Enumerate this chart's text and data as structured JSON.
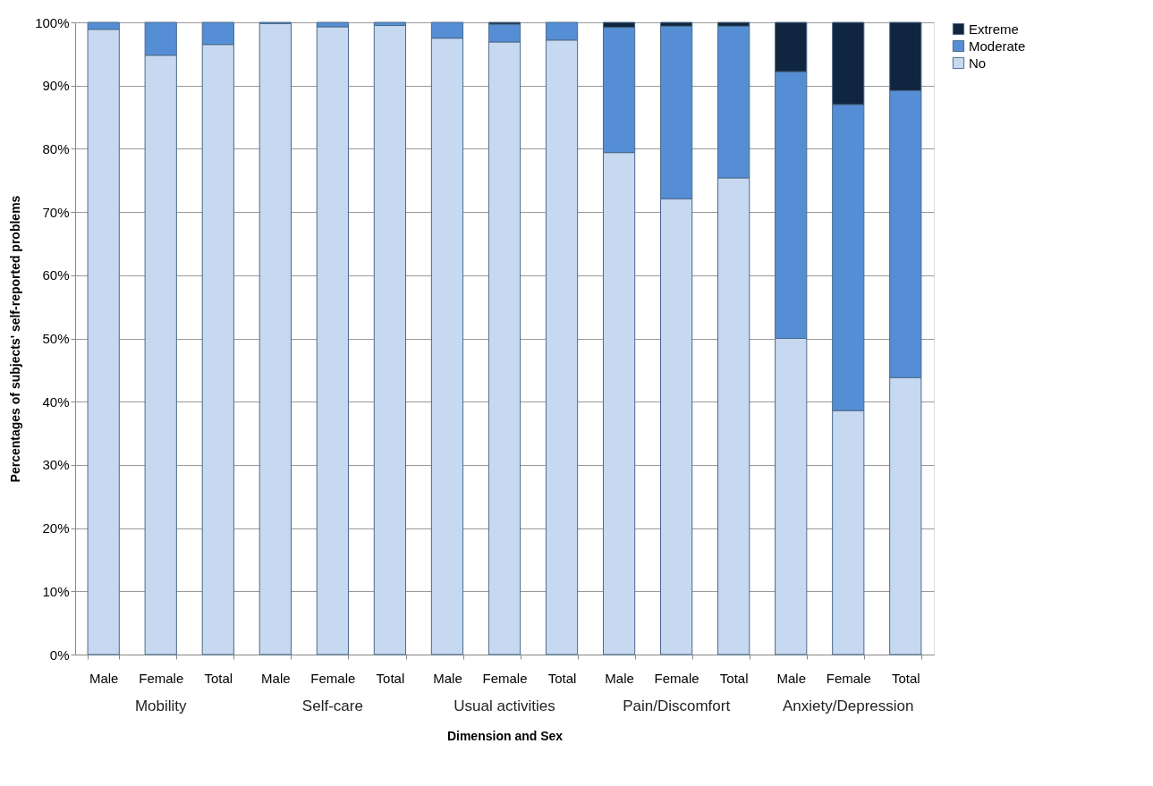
{
  "chart_data": {
    "type": "bar",
    "stacked": true,
    "xlabel": "Dimension and Sex",
    "ylabel": "Percentages of subjects' self-reported problems",
    "categories": [
      "Male",
      "Female",
      "Total",
      "Male",
      "Female",
      "Total",
      "Male",
      "Female",
      "Total",
      "Male",
      "Female",
      "Total",
      "Male",
      "Female",
      "Total"
    ],
    "annotations": [
      "Mobility",
      "Self-care",
      "Usual activities",
      "Pain/Discomfort",
      "Anxiety/Depression"
    ],
    "series": [
      {
        "name": "No",
        "color": "#c6d9f1",
        "values": [
          98.9,
          94.8,
          96.5,
          99.8,
          99.3,
          99.5,
          97.5,
          96.9,
          97.2,
          79.4,
          72.1,
          75.4,
          50.0,
          38.6,
          43.8
        ]
      },
      {
        "name": "Moderate",
        "color": "#558ed5",
        "values": [
          1.1,
          5.2,
          3.5,
          0.2,
          0.7,
          0.5,
          2.5,
          2.8,
          2.8,
          19.8,
          27.3,
          24.0,
          42.2,
          48.4,
          45.4
        ]
      },
      {
        "name": "Extreme",
        "color": "#10253f",
        "values": [
          0,
          0,
          0,
          0,
          0,
          0,
          0,
          0.3,
          0,
          0.8,
          0.6,
          0.6,
          7.8,
          13.0,
          10.8
        ]
      }
    ],
    "ylim": [
      0,
      100
    ],
    "yticks": [
      {
        "value": 0,
        "label": "0%"
      },
      {
        "value": 10,
        "label": "10%"
      },
      {
        "value": 20,
        "label": "20%"
      },
      {
        "value": 30,
        "label": "30%"
      },
      {
        "value": 40,
        "label": "40%"
      },
      {
        "value": 50,
        "label": "50%"
      },
      {
        "value": 60,
        "label": "60%"
      },
      {
        "value": 70,
        "label": "70%"
      },
      {
        "value": 80,
        "label": "80%"
      },
      {
        "value": 90,
        "label": "90%"
      },
      {
        "value": 100,
        "label": "100%"
      }
    ],
    "grid": "y",
    "legend": "right"
  }
}
